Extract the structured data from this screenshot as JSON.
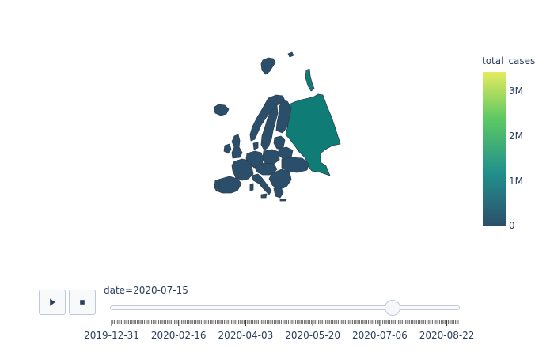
{
  "map": {
    "region": "Europe",
    "color_scale": "viridis",
    "colors": {
      "low": "#2b4f6b",
      "mid_low": "#21918c",
      "mid_high": "#5ec962",
      "high": "#e4eb5f",
      "border": "#2f3f4f"
    },
    "regions": [
      {
        "name": "Russia",
        "level": "high"
      },
      {
        "name": "Ukraine",
        "level": "low"
      },
      {
        "name": "Belarus",
        "level": "low"
      },
      {
        "name": "United Kingdom",
        "level": "low"
      },
      {
        "name": "Spain",
        "level": "low"
      },
      {
        "name": "Italy",
        "level": "low"
      },
      {
        "name": "France",
        "level": "low"
      },
      {
        "name": "Germany",
        "level": "low"
      },
      {
        "name": "Sweden",
        "level": "low"
      },
      {
        "name": "Finland",
        "level": "low"
      },
      {
        "name": "Norway",
        "level": "low"
      },
      {
        "name": "Poland",
        "level": "low"
      }
    ]
  },
  "colorbar": {
    "title": "total_cases",
    "ticks": [
      "3M",
      "2M",
      "1M",
      "0"
    ],
    "tick_values": [
      3000000,
      2000000,
      1000000,
      0
    ],
    "max": 3400000
  },
  "animation": {
    "play_icon": "play-icon",
    "stop_icon": "stop-icon",
    "current_value_prefix": "date=",
    "current_value": "2020-07-15",
    "current_value_text": "date=2020-07-15",
    "start_date": "2019-12-31",
    "end_date": "2020-08-30",
    "tick_labels": [
      "2019-12-31",
      "2020-02-16",
      "2020-04-03",
      "2020-05-20",
      "2020-07-06",
      "2020-08-22"
    ]
  }
}
